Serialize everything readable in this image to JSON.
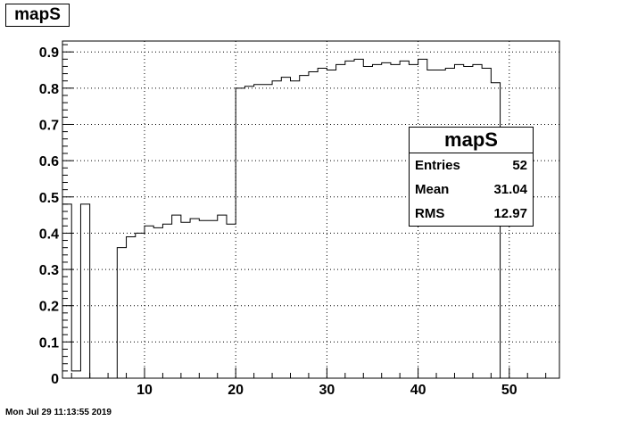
{
  "chart_data": {
    "type": "histogram",
    "title": "mapS",
    "x_bin_edges": [
      1,
      2,
      3,
      4,
      5,
      6,
      7,
      8,
      9,
      10,
      11,
      12,
      13,
      14,
      15,
      16,
      17,
      18,
      19,
      20,
      21,
      22,
      23,
      24,
      25,
      26,
      27,
      28,
      29,
      30,
      31,
      32,
      33,
      34,
      35,
      36,
      37,
      38,
      39,
      40,
      41,
      42,
      43,
      44,
      45,
      46,
      47,
      48,
      49,
      50,
      51,
      52
    ],
    "values": [
      0.48,
      0.02,
      0.48,
      0.0,
      0.0,
      0.0,
      0.36,
      0.39,
      0.4,
      0.42,
      0.415,
      0.425,
      0.45,
      0.43,
      0.44,
      0.435,
      0.435,
      0.45,
      0.425,
      0.8,
      0.805,
      0.81,
      0.81,
      0.82,
      0.83,
      0.82,
      0.835,
      0.845,
      0.855,
      0.85,
      0.865,
      0.875,
      0.88,
      0.86,
      0.865,
      0.87,
      0.865,
      0.875,
      0.865,
      0.88,
      0.85,
      0.85,
      0.855,
      0.865,
      0.86,
      0.865,
      0.855,
      0.815,
      0.0,
      0.0,
      0.0
    ],
    "xlim": [
      1,
      55.5
    ],
    "ylim": [
      0,
      0.93
    ],
    "x_ticks": [
      10,
      20,
      30,
      40,
      50
    ],
    "x_tick_labels": [
      "10",
      "20",
      "30",
      "40",
      "50"
    ],
    "y_ticks": [
      0,
      0.1,
      0.2,
      0.3,
      0.4,
      0.5,
      0.6,
      0.7,
      0.8,
      0.9
    ],
    "y_tick_labels": [
      "0",
      "0.1",
      "0.2",
      "0.3",
      "0.4",
      "0.5",
      "0.6",
      "0.7",
      "0.8",
      "0.9"
    ],
    "grid": true,
    "legend": "none",
    "xlabel": "",
    "ylabel": "",
    "stats": {
      "title": "mapS",
      "rows": [
        {
          "label": "Entries",
          "value": "52"
        },
        {
          "label": "Mean",
          "value": "31.04"
        },
        {
          "label": "RMS",
          "value": "12.97"
        }
      ],
      "placement": "right"
    }
  },
  "timestamp": "Mon Jul 29 11:13:55 2019",
  "colors": {
    "line": "#000000",
    "grid": "#000000",
    "background": "#ffffff"
  }
}
